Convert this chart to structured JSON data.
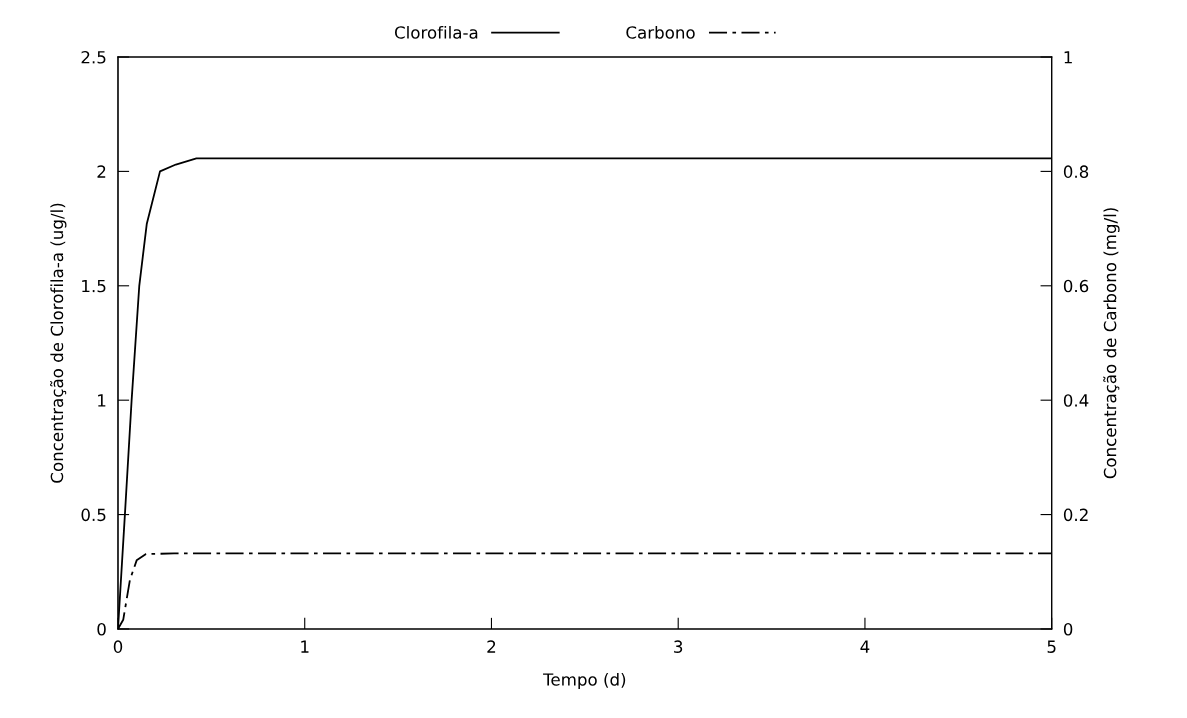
{
  "chart_data": {
    "type": "line",
    "xlabel": "Tempo (d)",
    "ylabel": "Concentração de Clorofila-a (ug/l)",
    "y2label": "Concentração de Carbono (mg/l)",
    "xlim": [
      0,
      5
    ],
    "xticks": [
      0,
      1,
      2,
      3,
      4,
      5
    ],
    "ylim": [
      0,
      2.5
    ],
    "yticks": [
      0,
      0.5,
      1,
      1.5,
      2,
      2.5
    ],
    "y2lim": [
      0,
      1
    ],
    "y2ticks": [
      0,
      0.2,
      0.4,
      0.6,
      0.8,
      1
    ],
    "grid": false,
    "legend": "top",
    "marker": "none",
    "series": [
      {
        "name": "Clorofila-a",
        "color": "#000000",
        "line_style": "solid",
        "x": [
          0,
          0.037,
          0.073,
          0.114,
          0.154,
          0.225,
          0.31,
          0.42,
          1,
          2,
          3,
          4,
          5
        ],
        "values": [
          0,
          0.5,
          1.0,
          1.5,
          1.77,
          2.0,
          2.03,
          2.057,
          2.057,
          2.057,
          2.057,
          2.057,
          2.057
        ]
      },
      {
        "name": "Carbono",
        "color": "#000000",
        "line_style": "dashdot",
        "axis": "y2",
        "x": [
          0,
          0.028,
          0.064,
          0.1,
          0.15,
          0.3,
          1,
          2,
          3,
          4,
          5
        ],
        "values": [
          0,
          0.016,
          0.086,
          0.12,
          0.131,
          0.132,
          0.132,
          0.132,
          0.132,
          0.132,
          0.132
        ]
      }
    ]
  }
}
